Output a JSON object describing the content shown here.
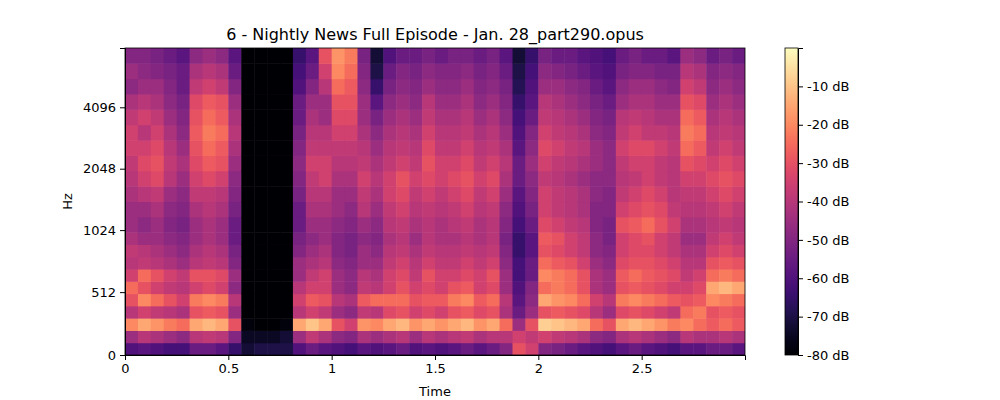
{
  "chart_data": {
    "type": "heatmap",
    "title": "6 - Nightly News Full Episode - Jan. 28_part290.opus",
    "x_label": "Time",
    "y_label": "Hz",
    "xlim": [
      0,
      3
    ],
    "ylim": [
      0,
      8000
    ],
    "xticks": [
      0,
      0.5,
      1,
      1.5,
      2,
      2.5
    ],
    "yticks": [
      0,
      512,
      1024,
      2048,
      4096
    ],
    "log": "y",
    "color": "magma",
    "x_edges": [
      0,
      0.0625,
      0.125,
      0.1875,
      0.25,
      0.3125,
      0.375,
      0.4375,
      0.5,
      0.5625,
      0.625,
      0.6875,
      0.75,
      0.8125,
      0.875,
      0.9375,
      1,
      1.0625,
      1.125,
      1.1875,
      1.25,
      1.3125,
      1.375,
      1.4375,
      1.5,
      1.5625,
      1.625,
      1.6875,
      1.75,
      1.8125,
      1.875,
      1.9375,
      2,
      2.0625,
      2.125,
      2.1875,
      2.25,
      2.3125,
      2.375,
      2.4375,
      2.5,
      2.5625,
      2.625,
      2.6875,
      2.75,
      2.8125,
      2.875,
      2.9375,
      3
    ],
    "y_edges": [
      0,
      100,
      200,
      300,
      400,
      500,
      600,
      700,
      800,
      900,
      1000,
      1189,
      1414,
      1682,
      2000,
      2378,
      2828,
      3364,
      4000,
      4757,
      5657,
      6727,
      8000
    ],
    "cells": [
      [
        -60,
        -45,
        -20,
        -40,
        -30,
        -25,
        -35,
        -40,
        -38,
        -42,
        -45,
        -45,
        -42,
        -40,
        -38,
        -35,
        -35,
        -38,
        -42,
        -48,
        -45,
        -50
      ],
      [
        -58,
        -40,
        -15,
        -35,
        -20,
        -30,
        -25,
        -38,
        -40,
        -45,
        -48,
        -45,
        -40,
        -35,
        -32,
        -35,
        -40,
        -35,
        -40,
        -45,
        -48,
        -50
      ],
      [
        -60,
        -42,
        -18,
        -38,
        -25,
        -35,
        -30,
        -40,
        -42,
        -45,
        -45,
        -42,
        -38,
        -32,
        -30,
        -32,
        -35,
        -38,
        -42,
        -45,
        -50,
        -52
      ],
      [
        -62,
        -45,
        -22,
        -40,
        -30,
        -38,
        -35,
        -42,
        -45,
        -48,
        -50,
        -48,
        -45,
        -40,
        -38,
        -40,
        -42,
        -45,
        -48,
        -50,
        -52,
        -55
      ],
      [
        -62,
        -48,
        -25,
        -42,
        -35,
        -40,
        -38,
        -45,
        -48,
        -50,
        -52,
        -50,
        -48,
        -45,
        -42,
        -45,
        -48,
        -50,
        -52,
        -55,
        -55,
        -58
      ],
      [
        -55,
        -40,
        -15,
        -30,
        -22,
        -35,
        -30,
        -40,
        -42,
        -45,
        -45,
        -42,
        -38,
        -35,
        -32,
        -30,
        -28,
        -30,
        -32,
        -38,
        -42,
        -48
      ],
      [
        -55,
        -38,
        -12,
        -28,
        -20,
        -32,
        -30,
        -38,
        -40,
        -42,
        -42,
        -40,
        -38,
        -32,
        -28,
        -25,
        -22,
        -25,
        -28,
        -35,
        -40,
        -45
      ],
      [
        -58,
        -40,
        -15,
        -30,
        -22,
        -35,
        -32,
        -40,
        -42,
        -45,
        -45,
        -42,
        -40,
        -35,
        -30,
        -28,
        -25,
        -28,
        -30,
        -38,
        -42,
        -48
      ],
      [
        -65,
        -50,
        -30,
        -45,
        -40,
        -48,
        -45,
        -50,
        -52,
        -55,
        -55,
        -52,
        -50,
        -48,
        -45,
        -42,
        -40,
        -42,
        -45,
        -50,
        -55,
        -58
      ],
      [
        -72,
        -75,
        -78,
        -80,
        -80,
        -80,
        -80,
        -80,
        -80,
        -80,
        -80,
        -80,
        -80,
        -80,
        -80,
        -80,
        -80,
        -80,
        -80,
        -80,
        -80,
        -80
      ],
      [
        -70,
        -75,
        -80,
        -80,
        -80,
        -80,
        -80,
        -80,
        -80,
        -80,
        -80,
        -80,
        -80,
        -80,
        -80,
        -80,
        -80,
        -80,
        -80,
        -80,
        -80,
        -80
      ],
      [
        -70,
        -75,
        -80,
        -80,
        -80,
        -80,
        -80,
        -80,
        -80,
        -80,
        -80,
        -80,
        -80,
        -80,
        -80,
        -80,
        -80,
        -80,
        -80,
        -80,
        -80,
        -80
      ],
      [
        -70,
        -72,
        -78,
        -80,
        -80,
        -80,
        -80,
        -80,
        -80,
        -80,
        -80,
        -80,
        -80,
        -80,
        -80,
        -80,
        -80,
        -80,
        -80,
        -80,
        -80,
        -80
      ],
      [
        -60,
        -45,
        -15,
        -40,
        -35,
        -40,
        -45,
        -45,
        -50,
        -52,
        -55,
        -55,
        -52,
        -50,
        -48,
        -50,
        -52,
        -55,
        -55,
        -60,
        -62,
        -65
      ],
      [
        -55,
        -38,
        -10,
        -35,
        -28,
        -35,
        -38,
        -42,
        -45,
        -48,
        -45,
        -42,
        -40,
        -38,
        -35,
        -38,
        -40,
        -42,
        -45,
        -50,
        -55,
        -58
      ],
      [
        -58,
        -42,
        -15,
        -38,
        -30,
        -35,
        -35,
        -40,
        -42,
        -45,
        -45,
        -42,
        -40,
        -35,
        -35,
        -38,
        -40,
        -45,
        -45,
        -40,
        -35,
        -30
      ],
      [
        -60,
        -48,
        -30,
        -45,
        -40,
        -45,
        -45,
        -48,
        -50,
        -50,
        -48,
        -45,
        -45,
        -42,
        -40,
        -38,
        -35,
        -32,
        -30,
        -25,
        -20,
        -18
      ],
      [
        -62,
        -50,
        -35,
        -48,
        -42,
        -48,
        -48,
        -50,
        -52,
        -52,
        -50,
        -48,
        -45,
        -42,
        -40,
        -38,
        -35,
        -32,
        -30,
        -28,
        -25,
        -22
      ],
      [
        -58,
        -42,
        -18,
        -38,
        -28,
        -38,
        -40,
        -45,
        -45,
        -48,
        -45,
        -40,
        -38,
        -35,
        -38,
        -40,
        -42,
        -45,
        -45,
        -48,
        -50,
        -52
      ],
      [
        -60,
        -45,
        -20,
        -40,
        -25,
        -40,
        -42,
        -45,
        -48,
        -50,
        -48,
        -45,
        -42,
        -40,
        -42,
        -45,
        -48,
        -52,
        -58,
        -65,
        -70,
        -72
      ],
      [
        -58,
        -42,
        -15,
        -32,
        -25,
        -35,
        -35,
        -38,
        -40,
        -42,
        -40,
        -38,
        -35,
        -35,
        -38,
        -40,
        -42,
        -45,
        -48,
        -52,
        -55,
        -60
      ],
      [
        -55,
        -40,
        -12,
        -30,
        -25,
        -30,
        -32,
        -35,
        -38,
        -40,
        -38,
        -35,
        -32,
        -30,
        -35,
        -38,
        -40,
        -42,
        -45,
        -48,
        -50,
        -55
      ],
      [
        -60,
        -45,
        -18,
        -35,
        -30,
        -35,
        -38,
        -40,
        -42,
        -45,
        -42,
        -40,
        -38,
        -35,
        -38,
        -40,
        -42,
        -45,
        -48,
        -50,
        -52,
        -55
      ],
      [
        -58,
        -40,
        -15,
        -32,
        -28,
        -32,
        -30,
        -35,
        -38,
        -40,
        -40,
        -38,
        -35,
        -32,
        -30,
        -32,
        -35,
        -38,
        -40,
        -45,
        -48,
        -52
      ],
      [
        -60,
        -42,
        -18,
        -35,
        -28,
        -35,
        -35,
        -38,
        -40,
        -42,
        -42,
        -40,
        -38,
        -35,
        -35,
        -38,
        -40,
        -42,
        -45,
        -48,
        -50,
        -55
      ],
      [
        -58,
        -40,
        -15,
        -30,
        -22,
        -30,
        -35,
        -38,
        -40,
        -42,
        -40,
        -38,
        -35,
        -32,
        -35,
        -38,
        -40,
        -42,
        -45,
        -48,
        -50,
        -52
      ],
      [
        -55,
        -38,
        -12,
        -28,
        -20,
        -28,
        -32,
        -35,
        -38,
        -40,
        -38,
        -35,
        -32,
        -30,
        -32,
        -35,
        -38,
        -40,
        -42,
        -45,
        -48,
        -52
      ],
      [
        -58,
        -42,
        -18,
        -32,
        -28,
        -35,
        -35,
        -38,
        -40,
        -42,
        -42,
        -40,
        -38,
        -35,
        -38,
        -40,
        -42,
        -45,
        -48,
        -50,
        -52,
        -55
      ],
      [
        -55,
        -40,
        -15,
        -30,
        -25,
        -32,
        -30,
        -35,
        -38,
        -40,
        -40,
        -38,
        -35,
        -32,
        -35,
        -38,
        -40,
        -42,
        -45,
        -48,
        -50,
        -52
      ],
      [
        -50,
        -40,
        -25,
        -42,
        -40,
        -45,
        -45,
        -48,
        -50,
        -52,
        -50,
        -48,
        -45,
        -42,
        -40,
        -42,
        -45,
        -48,
        -50,
        -52,
        -55,
        -58
      ],
      [
        -30,
        -35,
        -45,
        -55,
        -58,
        -60,
        -62,
        -62,
        -65,
        -65,
        -62,
        -60,
        -58,
        -55,
        -55,
        -58,
        -60,
        -62,
        -65,
        -68,
        -70,
        -72
      ],
      [
        -35,
        -38,
        -30,
        -45,
        -48,
        -50,
        -55,
        -55,
        -58,
        -58,
        -55,
        -52,
        -50,
        -48,
        -45,
        -48,
        -50,
        -55,
        -58,
        -60,
        -62,
        -65
      ],
      [
        -50,
        -35,
        -8,
        -30,
        -15,
        -25,
        -20,
        -25,
        -30,
        -28,
        -32,
        -35,
        -35,
        -38,
        -35,
        -32,
        -35,
        -38,
        -40,
        -45,
        -48,
        -52
      ],
      [
        -52,
        -38,
        -10,
        -28,
        -18,
        -22,
        -22,
        -28,
        -32,
        -30,
        -35,
        -38,
        -38,
        -40,
        -38,
        -35,
        -38,
        -40,
        -42,
        -45,
        -50,
        -55
      ],
      [
        -55,
        -40,
        -12,
        -30,
        -20,
        -25,
        -25,
        -30,
        -35,
        -35,
        -38,
        -40,
        -40,
        -42,
        -40,
        -38,
        -40,
        -42,
        -45,
        -48,
        -52,
        -55
      ],
      [
        -58,
        -42,
        -15,
        -32,
        -25,
        -30,
        -30,
        -35,
        -38,
        -38,
        -40,
        -42,
        -42,
        -45,
        -42,
        -40,
        -42,
        -45,
        -48,
        -50,
        -55,
        -58
      ],
      [
        -60,
        -48,
        -25,
        -40,
        -35,
        -42,
        -42,
        -45,
        -48,
        -48,
        -50,
        -50,
        -48,
        -48,
        -45,
        -45,
        -48,
        -50,
        -52,
        -55,
        -58,
        -60
      ],
      [
        -62,
        -50,
        -30,
        -45,
        -40,
        -45,
        -45,
        -48,
        -50,
        -52,
        -52,
        -50,
        -50,
        -48,
        -48,
        -48,
        -50,
        -52,
        -55,
        -58,
        -60,
        -62
      ],
      [
        -58,
        -42,
        -15,
        -32,
        -22,
        -30,
        -28,
        -32,
        -35,
        -35,
        -30,
        -35,
        -38,
        -40,
        -38,
        -35,
        -38,
        -40,
        -45,
        -48,
        -52,
        -55
      ],
      [
        -55,
        -40,
        -12,
        -30,
        -20,
        -28,
        -25,
        -30,
        -32,
        -32,
        -28,
        -32,
        -35,
        -38,
        -35,
        -32,
        -35,
        -38,
        -42,
        -45,
        -50,
        -52
      ],
      [
        -58,
        -42,
        -15,
        -32,
        -22,
        -30,
        -28,
        -30,
        -32,
        -30,
        -25,
        -30,
        -32,
        -35,
        -35,
        -32,
        -38,
        -40,
        -42,
        -45,
        -50,
        -55
      ],
      [
        -60,
        -45,
        -18,
        -35,
        -25,
        -32,
        -30,
        -32,
        -35,
        -35,
        -30,
        -32,
        -35,
        -38,
        -38,
        -35,
        -38,
        -42,
        -45,
        -48,
        -52,
        -55
      ],
      [
        -62,
        -48,
        -22,
        -38,
        -28,
        -35,
        -32,
        -35,
        -38,
        -38,
        -35,
        -38,
        -40,
        -40,
        -40,
        -38,
        -40,
        -42,
        -45,
        -50,
        -52,
        -58
      ],
      [
        -58,
        -40,
        -20,
        -25,
        -30,
        -35,
        -38,
        -40,
        -42,
        -45,
        -42,
        -40,
        -38,
        -35,
        -30,
        -25,
        -22,
        -25,
        -30,
        -35,
        -40,
        -45
      ],
      [
        -58,
        -42,
        -25,
        -22,
        -28,
        -32,
        -35,
        -40,
        -42,
        -45,
        -42,
        -40,
        -38,
        -35,
        -32,
        -28,
        -25,
        -28,
        -32,
        -38,
        -42,
        -48
      ],
      [
        -55,
        -42,
        -28,
        -30,
        -20,
        -15,
        -25,
        -30,
        -35,
        -38,
        -40,
        -38,
        -35,
        -32,
        -35,
        -38,
        -40,
        -42,
        -45,
        -48,
        -50,
        -55
      ],
      [
        -55,
        -40,
        -25,
        -28,
        -22,
        -12,
        -22,
        -28,
        -32,
        -35,
        -38,
        -35,
        -32,
        -30,
        -32,
        -35,
        -38,
        -40,
        -42,
        -45,
        -48,
        -52
      ],
      [
        -58,
        -42,
        -28,
        -30,
        -25,
        -15,
        -25,
        -30,
        -35,
        -38,
        -40,
        -38,
        -35,
        -32,
        -35,
        -38,
        -40,
        -42,
        -45,
        -48,
        -50,
        -55
      ]
    ],
    "colorbar": {
      "lim": [
        -80,
        0
      ],
      "ticks": [
        {
          "value": -10,
          "label": "-10 dB"
        },
        {
          "value": -20,
          "label": "-20 dB"
        },
        {
          "value": -30,
          "label": "-30 dB"
        },
        {
          "value": -40,
          "label": "-40 dB"
        },
        {
          "value": -50,
          "label": "-50 dB"
        },
        {
          "value": -60,
          "label": "-60 dB"
        },
        {
          "value": -70,
          "label": "-70 dB"
        },
        {
          "value": -80,
          "label": "-80 dB"
        }
      ]
    }
  }
}
